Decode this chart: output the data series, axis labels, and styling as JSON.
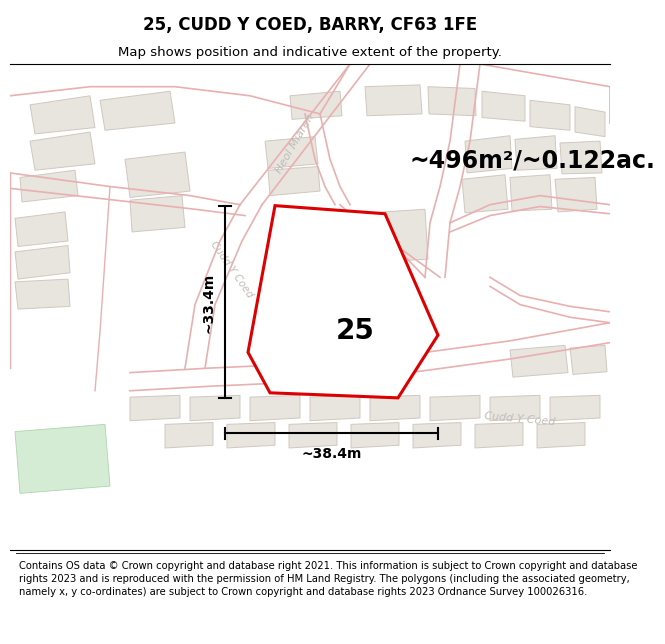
{
  "title": "25, CUDD Y COED, BARRY, CF63 1FE",
  "subtitle": "Map shows position and indicative extent of the property.",
  "area_label": "~496m²/~0.122ac.",
  "plot_number": "25",
  "width_label": "~38.4m",
  "height_label": "~33.4m",
  "footer_text": "Contains OS data © Crown copyright and database right 2021. This information is subject to Crown copyright and database rights 2023 and is reproduced with the permission of HM Land Registry. The polygons (including the associated geometry, namely x, y co-ordinates) are subject to Crown copyright and database rights 2023 Ordnance Survey 100026316.",
  "bg_color": "#ffffff",
  "map_bg": "#faf9f7",
  "road_line_color": "#e8b0b0",
  "road_fill_color": "#f5e8e8",
  "block_fill": "#e8e4de",
  "block_line": "#d0c8c0",
  "highlight_color": "#dd0000",
  "title_fontsize": 12,
  "subtitle_fontsize": 9.5,
  "footer_fontsize": 7.2,
  "area_fontsize": 17,
  "plot_num_fontsize": 20,
  "dim_fontsize": 10,
  "road_label_color": "#c0bcb8",
  "heol_label": "Heol Miaren",
  "cudd_road_label": "Cudd Y Coed",
  "cudd_inline_label": "Cudd Y Coed"
}
